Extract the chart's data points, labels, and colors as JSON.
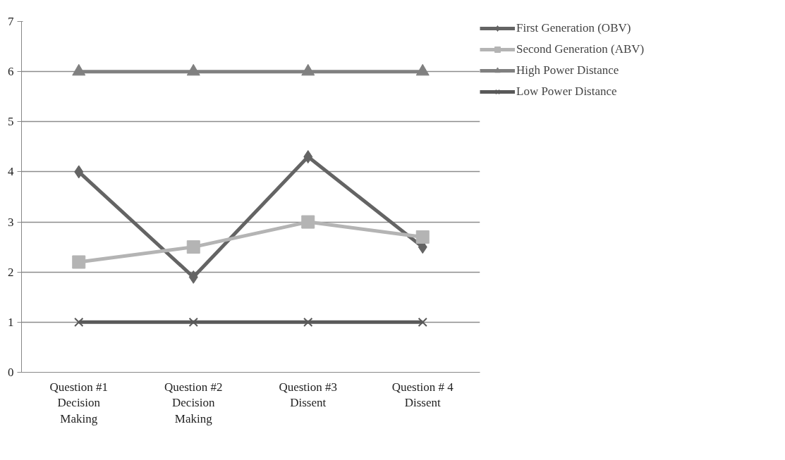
{
  "chart_data": {
    "type": "line",
    "categories": [
      "Question #1\nDecision\nMaking",
      "Question #2\nDecision\nMaking",
      "Question #3\nDissent",
      "Question # 4\nDissent"
    ],
    "series": [
      {
        "name": "First Generation (OBV)",
        "color": "#646464",
        "marker": "diamond",
        "values": [
          4,
          1.9,
          4.3,
          2.5
        ]
      },
      {
        "name": "Second Generation (ABV)",
        "color": "#b4b4b4",
        "marker": "square",
        "values": [
          2.2,
          2.5,
          3.0,
          2.7
        ]
      },
      {
        "name": "High Power Distance",
        "color": "#808080",
        "marker": "triangle",
        "values": [
          6,
          6,
          6,
          6
        ]
      },
      {
        "name": "Low Power Distance",
        "color": "#595959",
        "marker": "cross",
        "values": [
          1,
          1,
          1,
          1
        ]
      }
    ],
    "ylim": [
      0,
      7
    ],
    "yticks": [
      0,
      1,
      2,
      3,
      4,
      5,
      6,
      7
    ],
    "grid": "y",
    "legend": "right",
    "line_style": "solid"
  }
}
